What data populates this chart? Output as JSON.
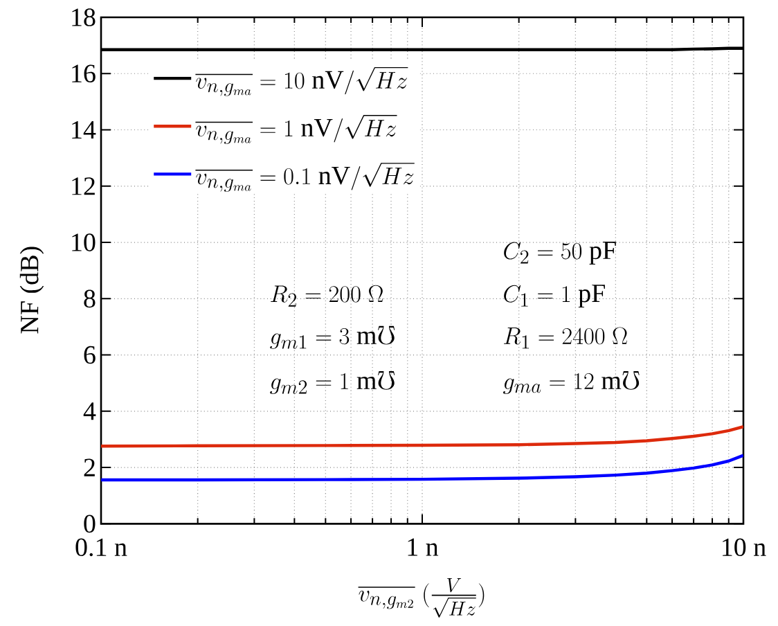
{
  "chart_data": {
    "type": "line",
    "xlabel": "\\overline{v_{n,g_{m2}}}\\ (\\frac{V}{\\sqrt{Hz}})",
    "ylabel": "NF (dB)",
    "x": [
      0.1,
      0.2,
      0.5,
      1,
      2,
      3,
      4,
      5,
      6,
      7,
      8,
      9,
      10
    ],
    "xlim": [
      0.1,
      10
    ],
    "xticks": [
      {
        "value": 0.1,
        "label": "0.1 n"
      },
      {
        "value": 1,
        "label": "1 n"
      },
      {
        "value": 10,
        "label": "10 n"
      }
    ],
    "ylim": [
      0,
      18
    ],
    "yticks": [
      0,
      2,
      4,
      6,
      8,
      10,
      12,
      14,
      16,
      18
    ],
    "log": "x",
    "grid": true,
    "legend": "top left",
    "series": [
      {
        "name": "\\overline{v_{n,g_{ma}}} = 10\\ \\mathrm{nV}/\\sqrt{Hz}",
        "color": "#000000",
        "values": [
          16.85,
          16.85,
          16.85,
          16.85,
          16.85,
          16.85,
          16.85,
          16.85,
          16.85,
          16.87,
          16.88,
          16.9,
          16.9
        ]
      },
      {
        "name": "\\overline{v_{n,g_{ma}}} = 1\\ \\mathrm{nV}/\\sqrt{Hz}",
        "color": "#dd2a0c",
        "values": [
          2.76,
          2.77,
          2.78,
          2.79,
          2.81,
          2.85,
          2.89,
          2.95,
          3.03,
          3.11,
          3.2,
          3.31,
          3.45
        ]
      },
      {
        "name": "\\overline{v_{n,g_{ma}}} = 0.1\\ \\mathrm{nV}/\\sqrt{Hz}",
        "color": "#0000ff",
        "values": [
          1.56,
          1.56,
          1.57,
          1.58,
          1.62,
          1.67,
          1.73,
          1.8,
          1.89,
          1.98,
          2.09,
          2.23,
          2.43
        ]
      }
    ],
    "annotations": [
      "C_2 = 50\\ \\mathrm{pF}",
      "R_2 = 200\\ \\Omega",
      "C_1 = 1\\ \\mathrm{pF}",
      "g_{m1} = 3\\ \\mathrm{m}\\mho",
      "R_1 = 2400\\ \\Omega",
      "g_{m2} = 1\\ \\mathrm{m}\\mho",
      "g_{ma} = 12\\ \\mathrm{m}\\mho"
    ]
  }
}
